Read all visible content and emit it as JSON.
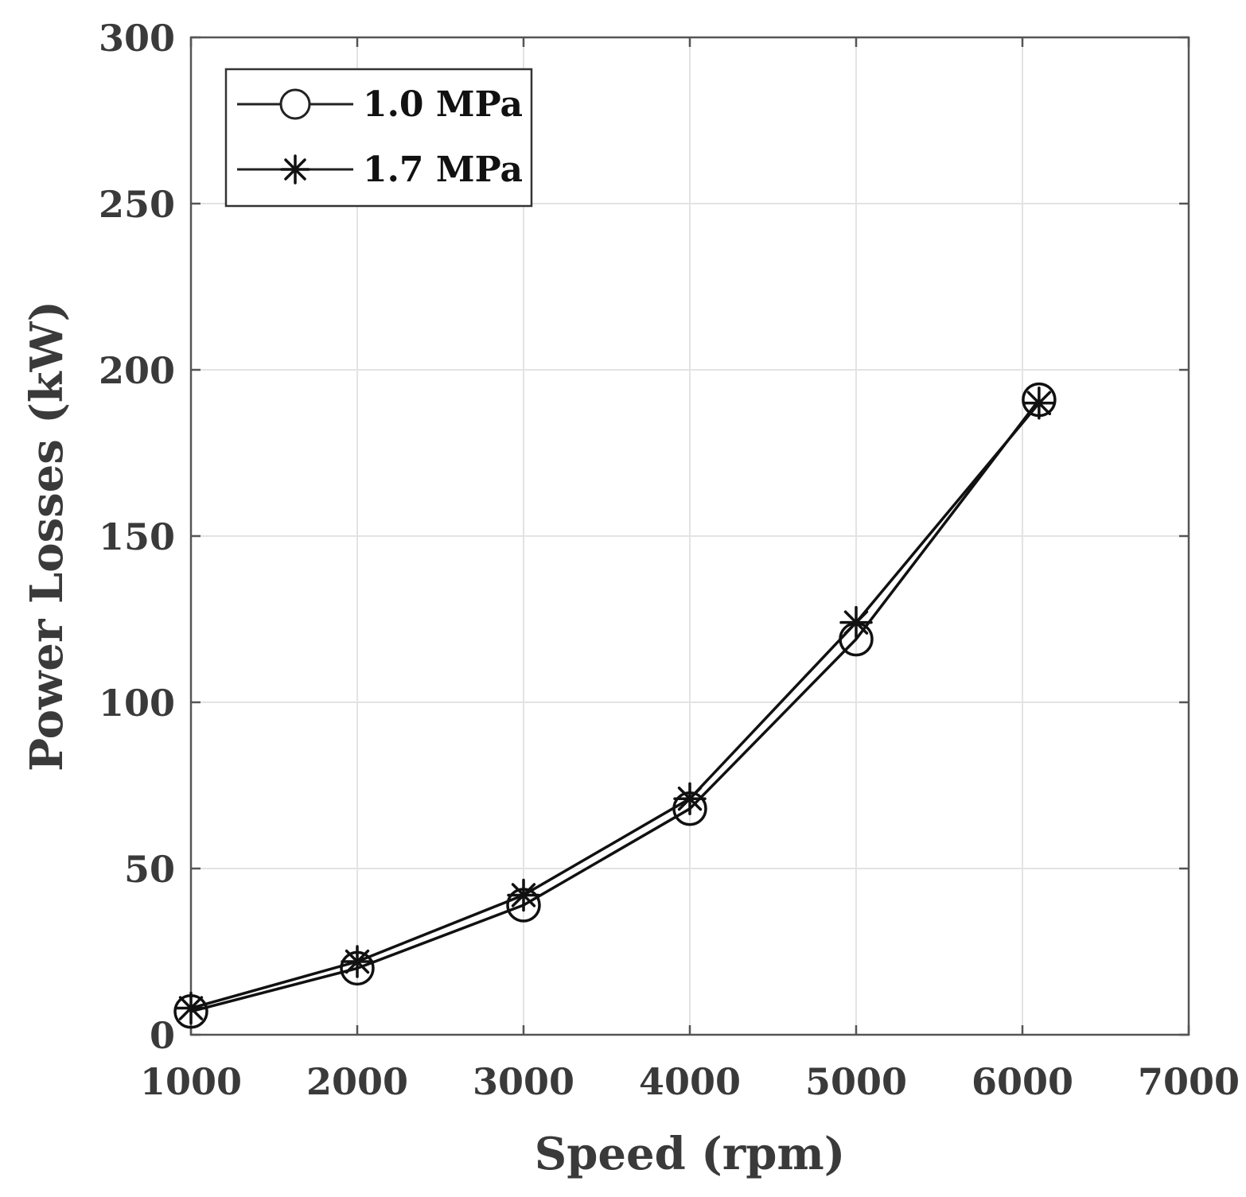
{
  "chart_data": {
    "type": "line",
    "title": "",
    "xlabel": "Speed (rpm)",
    "ylabel": "Power Losses (kW)",
    "xlim": [
      1000,
      7000
    ],
    "ylim": [
      0,
      300
    ],
    "xticks": [
      1000,
      2000,
      3000,
      4000,
      5000,
      6000,
      7000
    ],
    "yticks": [
      0,
      50,
      100,
      150,
      200,
      250,
      300
    ],
    "xtick_labels": [
      "1000",
      "2000",
      "3000",
      "4000",
      "5000",
      "6000",
      "7000"
    ],
    "ytick_labels": [
      "0",
      "50",
      "100",
      "150",
      "200",
      "250",
      "300"
    ],
    "grid": true,
    "legend_position": "top-left",
    "series": [
      {
        "name": "1.0 MPa",
        "marker": "circle",
        "x": [
          1000,
          2000,
          3000,
          4000,
          5000,
          6100
        ],
        "y": [
          7,
          20,
          39,
          68,
          119,
          191
        ]
      },
      {
        "name": "1.7 MPa",
        "marker": "asterisk",
        "x": [
          1000,
          2000,
          3000,
          4000,
          5000,
          6100
        ],
        "y": [
          8,
          22,
          42,
          71,
          124,
          190
        ]
      }
    ]
  }
}
